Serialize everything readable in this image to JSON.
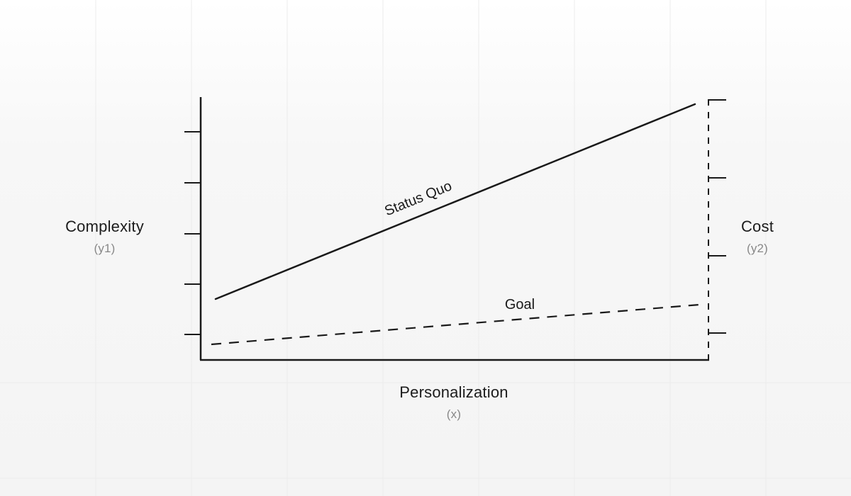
{
  "axes": {
    "y1": {
      "label": "Complexity",
      "sub": "(y1)"
    },
    "y2": {
      "label": "Cost",
      "sub": "(y2)"
    },
    "x": {
      "label": "Personalization",
      "sub": "(x)"
    }
  },
  "lines": {
    "status_quo": {
      "label": "Status Quo"
    },
    "goal": {
      "label": "Goal"
    }
  },
  "colors": {
    "ink": "#1a1a1a",
    "muted": "#888888",
    "background": "#f4f4f4"
  }
}
